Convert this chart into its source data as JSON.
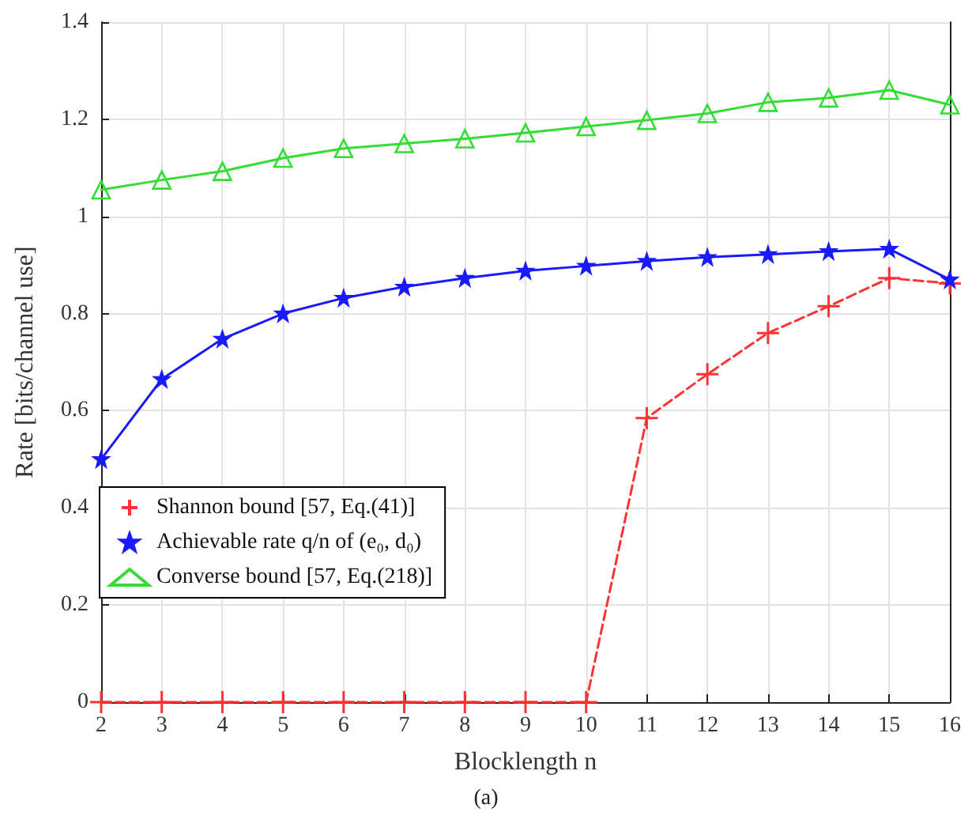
{
  "chart_data": {
    "type": "line",
    "xlabel": "Blocklength n",
    "ylabel": "Rate [bits/channel use]",
    "x": [
      2,
      3,
      4,
      5,
      6,
      7,
      8,
      9,
      10,
      11,
      12,
      13,
      14,
      15,
      16
    ],
    "series": [
      {
        "name": "Shannon bound [57, Eq.(41)]",
        "color": "#ff3333",
        "marker": "cross",
        "line_style": "dashed",
        "values": [
          0,
          0,
          0,
          0,
          0,
          0,
          0,
          0,
          0,
          0.585,
          0.675,
          0.76,
          0.815,
          0.873,
          0.862
        ]
      },
      {
        "name": "Achievable rate q/n of (e₀, d₀)",
        "color": "#1a1aff",
        "marker": "star",
        "line_style": "solid",
        "values": [
          0.5,
          0.665,
          0.748,
          0.8,
          0.832,
          0.855,
          0.873,
          0.888,
          0.898,
          0.908,
          0.916,
          0.922,
          0.928,
          0.933,
          0.87
        ]
      },
      {
        "name": "Converse bound [57, Eq.(218)]",
        "color": "#33dd33",
        "marker": "triangle",
        "line_style": "solid",
        "values": [
          1.055,
          1.075,
          1.093,
          1.12,
          1.14,
          1.15,
          1.16,
          1.172,
          1.185,
          1.198,
          1.212,
          1.235,
          1.244,
          1.26,
          1.23
        ]
      }
    ],
    "xlim": [
      2,
      16
    ],
    "xticks": [
      2,
      3,
      4,
      5,
      6,
      7,
      8,
      9,
      10,
      11,
      12,
      13,
      14,
      15,
      16
    ],
    "ylim": [
      0,
      1.4
    ],
    "yticks": [
      0,
      0.2,
      0.4,
      0.6,
      0.8,
      1,
      1.2,
      1.4
    ],
    "grid": true,
    "legend": "bottom left",
    "annotations": [
      "(a)"
    ]
  }
}
